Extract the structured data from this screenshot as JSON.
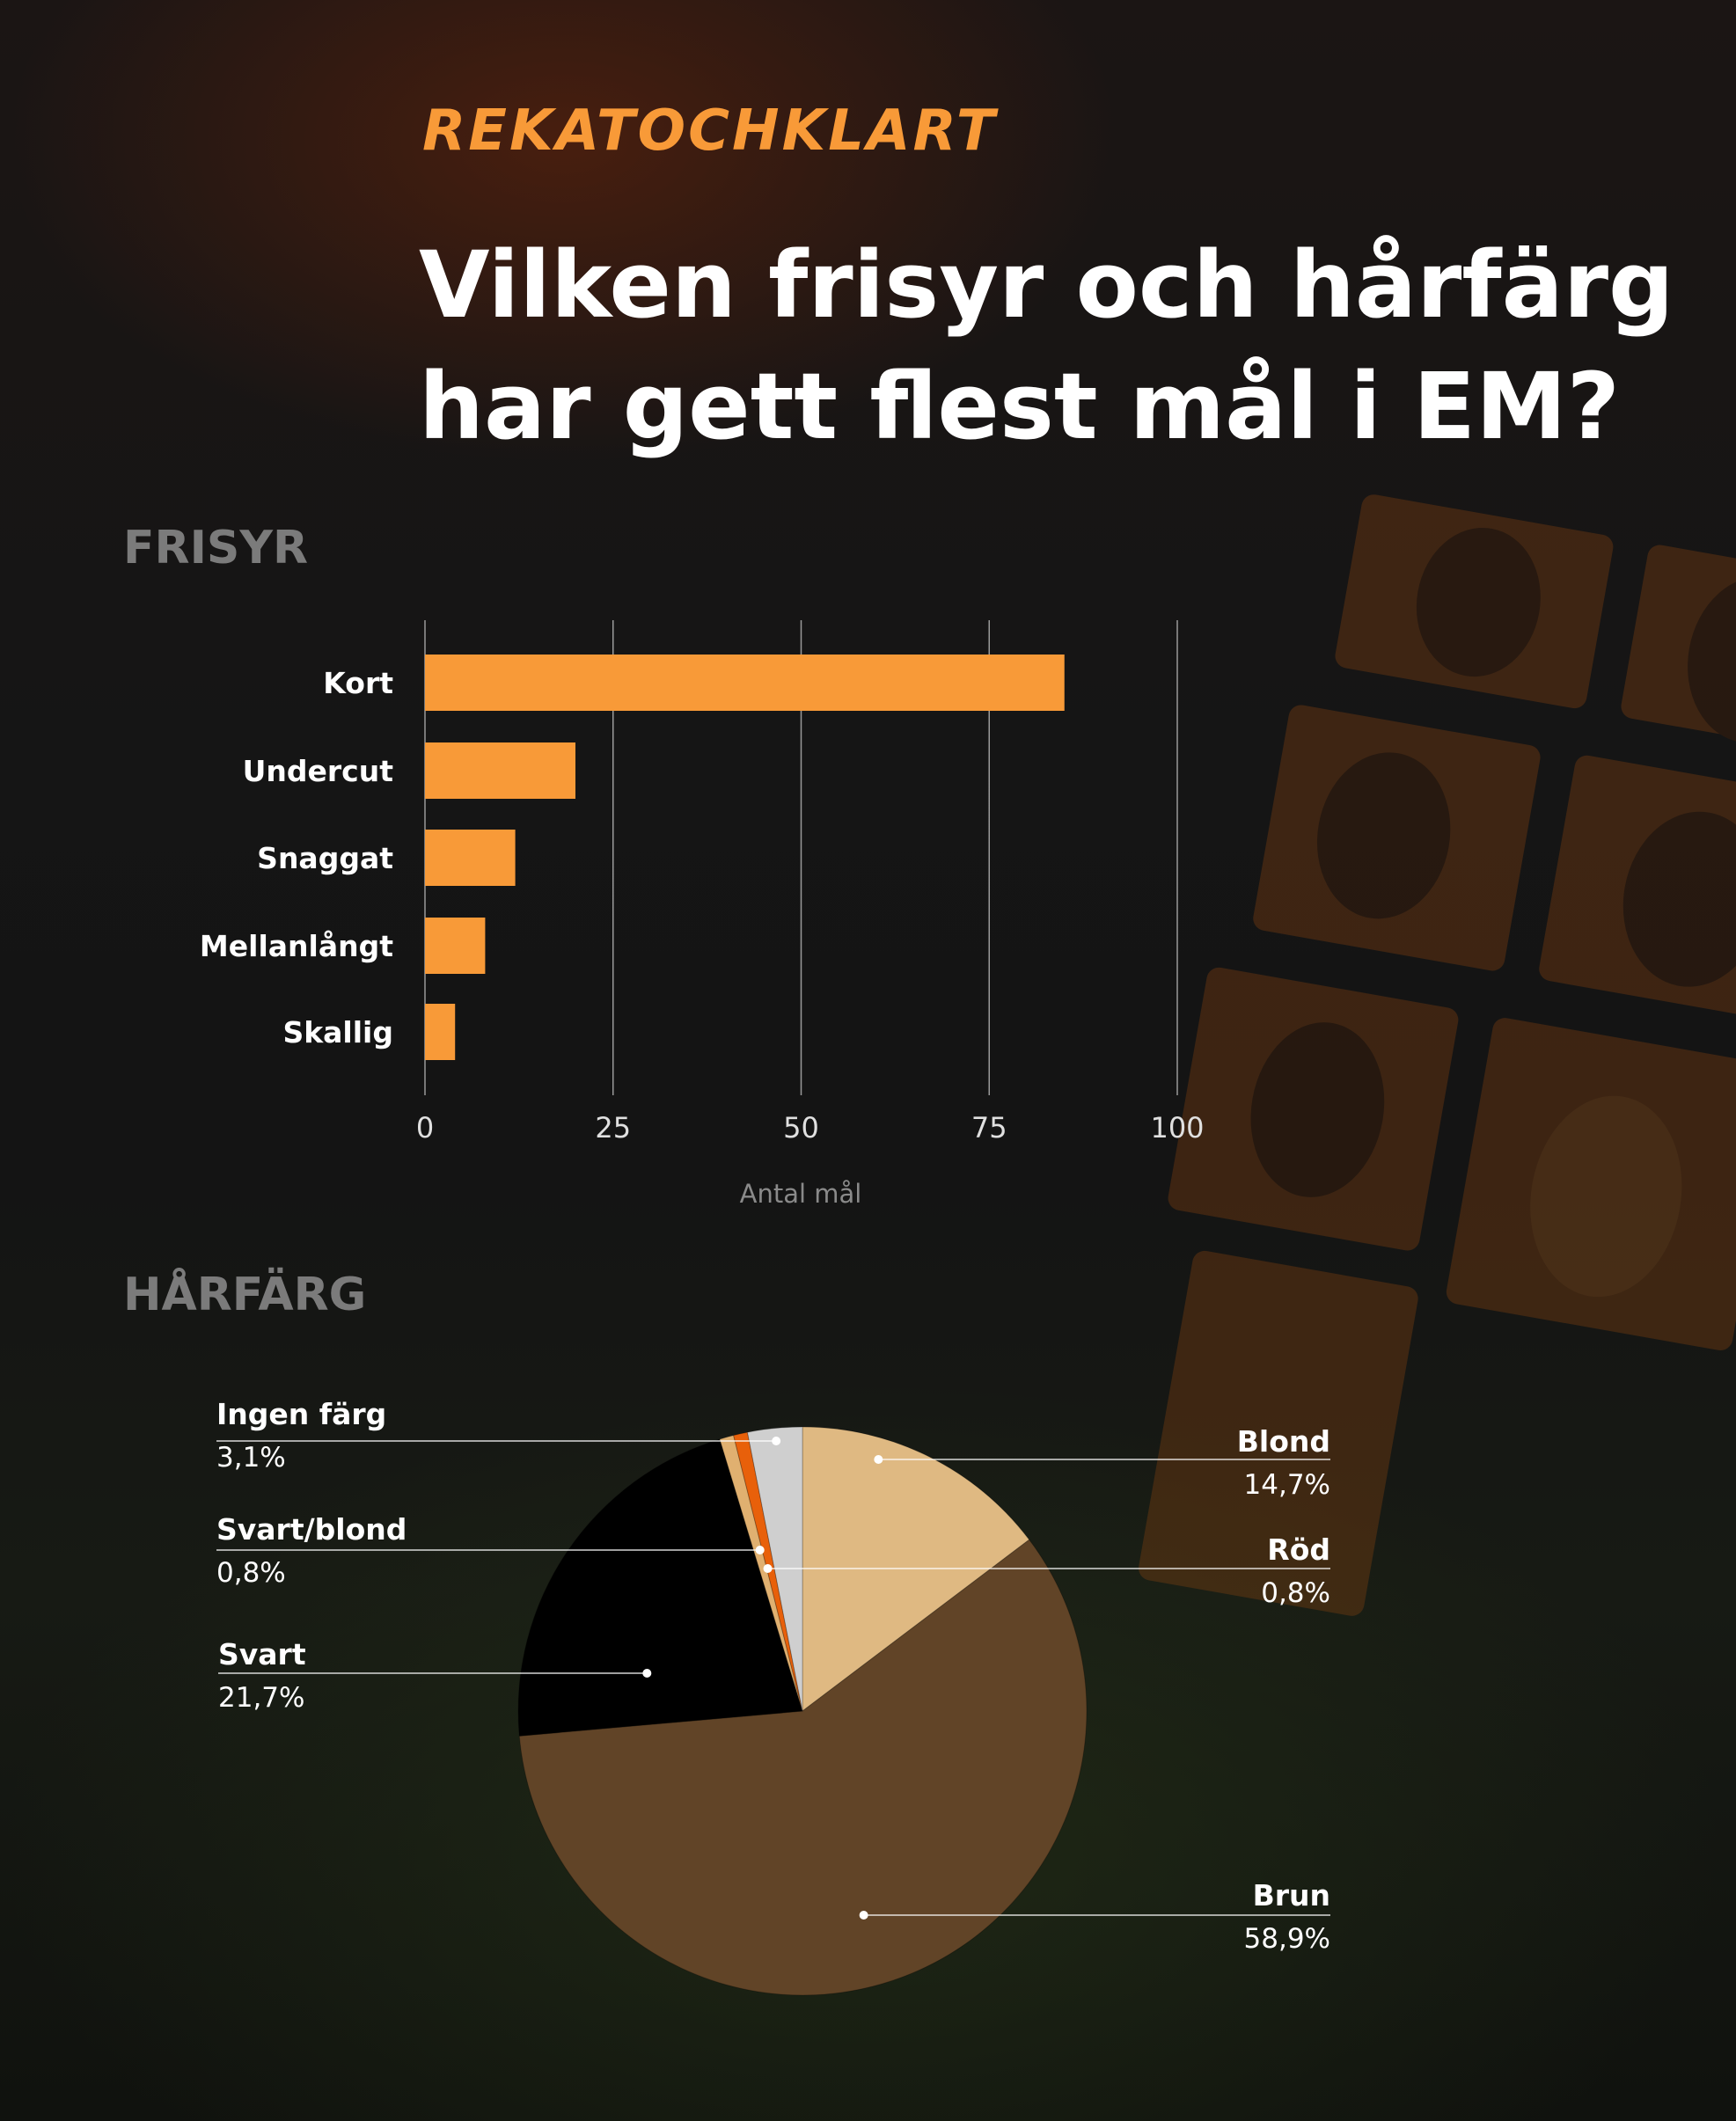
{
  "brand": "REKATOCHKLART",
  "title": "Vilken frisyr och hårfärg har gett flest mål i EM?",
  "sections": {
    "frisyr": "FRISYR",
    "harfarg": "HÅRFÄRG"
  },
  "colors": {
    "accent": "#f89a38",
    "title": "#ffffff",
    "section": "#7b7b7b"
  },
  "chart_data": [
    {
      "type": "bar",
      "orientation": "horizontal",
      "categories": [
        "Kort",
        "Undercut",
        "Snaggat",
        "Mellanlångt",
        "Skallig"
      ],
      "values": [
        85,
        20,
        12,
        8,
        4
      ],
      "xlabel": "Antal mål",
      "xlim": [
        0,
        100
      ],
      "xticks": [
        "0",
        "25",
        "50",
        "75",
        "100"
      ],
      "grid": true,
      "color": "#f89a38"
    },
    {
      "type": "pie",
      "slices": [
        {
          "label": "Blond",
          "value": "14,7%",
          "pct": 14.7,
          "color": "#dfb982"
        },
        {
          "label": "Brun",
          "value": "58,9%",
          "pct": 58.9,
          "color": "#614427"
        },
        {
          "label": "Svart",
          "value": "21,7%",
          "pct": 21.7,
          "color": "#000000"
        },
        {
          "label": "Svart/blond",
          "value": "0,8%",
          "pct": 0.8,
          "color": "#e0b070"
        },
        {
          "label": "Röd",
          "value": "0,8%",
          "pct": 0.8,
          "color": "#e8600a"
        },
        {
          "label": "Ingen färg",
          "value": "3,1%",
          "pct": 3.1,
          "color": "#cfcfcf"
        }
      ]
    }
  ]
}
